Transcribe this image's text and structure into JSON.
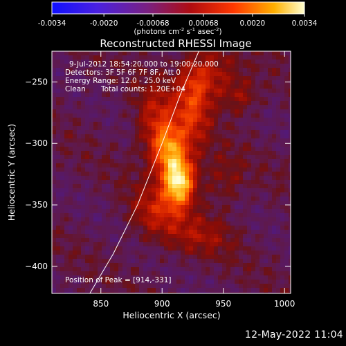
{
  "colorbar": {
    "ticks": [
      "-0.0034",
      "-0.0020",
      "-0.00068",
      "0.00068",
      "0.0020",
      "0.0034"
    ],
    "tick_values": [
      -0.0034,
      -0.002,
      -0.00068,
      0.00068,
      0.002,
      0.0034
    ],
    "units_label": "(photons cm",
    "units_exp1": "-2",
    "units_mid": " s",
    "units_exp2": "-1",
    "units_end": " asec",
    "units_exp3": "-2",
    "units_close": ")",
    "colors": [
      "#1010ff",
      "#6020c0",
      "#802070",
      "#a01010",
      "#ff4000",
      "#ffb000",
      "#ffffc0"
    ]
  },
  "chart_data": {
    "type": "heatmap",
    "title": "Reconstructed RHESSI Image",
    "xlabel": "Heliocentric X (arcsec)",
    "ylabel": "Heliocentric Y (arcsec)",
    "xlim": [
      810,
      1005
    ],
    "ylim": [
      -422,
      -225
    ],
    "x_ticks": [
      850,
      900,
      950,
      1000
    ],
    "x_tick_labels": [
      "850",
      "900",
      "950",
      "1000"
    ],
    "y_ticks": [
      -250,
      -300,
      -350,
      -400
    ],
    "y_tick_labels": [
      "−250",
      "−300",
      "−350",
      "−400"
    ],
    "peak": [
      914,
      -331
    ],
    "limb_curve": [
      [
        841,
        -422
      ],
      [
        860,
        -390
      ],
      [
        880,
        -350
      ],
      [
        900,
        -300
      ],
      [
        915,
        -260
      ],
      [
        930,
        -225
      ]
    ],
    "annotations": {
      "time": "9-Jul-2012 18:54:20.000 to 19:00:20.000",
      "detectors": "Detectors: 3F 5F 6F 7F 8F, Att 0",
      "energy": "Energy Range: 12.0 - 25.0 keV",
      "method": "Clean",
      "counts": "Total counts: 1.20E+04",
      "peak_text": "Position of Peak = [914,-331]"
    },
    "sources": [
      {
        "x": 914,
        "y": -331,
        "amp": 1.0,
        "sx": 9,
        "sy": 14
      },
      {
        "x": 905,
        "y": -305,
        "amp": 0.7,
        "sx": 10,
        "sy": 15
      },
      {
        "x": 895,
        "y": -280,
        "amp": 0.35,
        "sx": 12,
        "sy": 20
      },
      {
        "x": 925,
        "y": -270,
        "amp": 0.45,
        "sx": 10,
        "sy": 25
      },
      {
        "x": 940,
        "y": -245,
        "amp": 0.35,
        "sx": 15,
        "sy": 15
      },
      {
        "x": 965,
        "y": -262,
        "amp": 0.25,
        "sx": 10,
        "sy": 10
      },
      {
        "x": 895,
        "y": -355,
        "amp": 0.35,
        "sx": 15,
        "sy": 15
      },
      {
        "x": 930,
        "y": -375,
        "amp": 0.25,
        "sx": 20,
        "sy": 12
      },
      {
        "x": 950,
        "y": -330,
        "amp": 0.2,
        "sx": 12,
        "sy": 15
      }
    ]
  },
  "timestamp": "12-May-2022 11:04"
}
